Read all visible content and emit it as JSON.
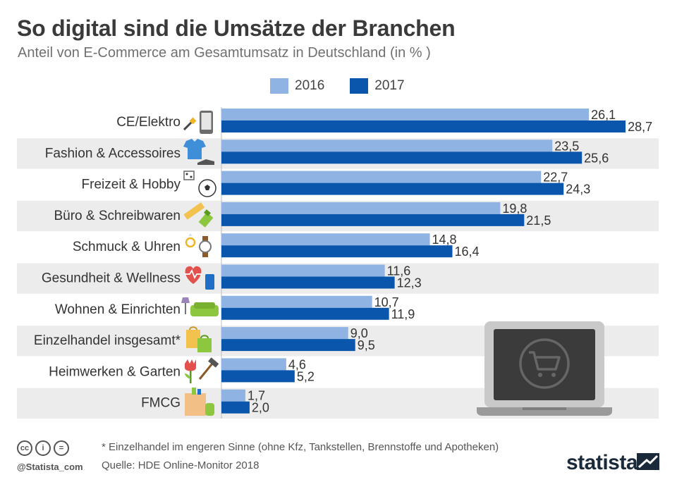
{
  "chart_data": {
    "type": "bar",
    "orientation": "horizontal",
    "title": "So digital sind die Umsätze der Branchen",
    "subtitle": "Anteil von E-Commerce am Gesamtumsatz in Deutschland (in % )",
    "categories": [
      "CE/Elektro",
      "Fashion & Accessoires",
      "Freizeit & Hobby",
      "Büro & Schreibwaren",
      "Schmuck & Uhren",
      "Gesundheit & Wellness",
      "Wohnen & Einrichten",
      "Einzelhandel insgesamt*",
      "Heimwerken & Garten",
      "FMCG"
    ],
    "series": [
      {
        "name": "2016",
        "color": "#8fb4e3",
        "values": [
          26.1,
          23.5,
          22.7,
          19.8,
          14.8,
          11.6,
          10.7,
          9.0,
          4.6,
          1.7
        ],
        "labels": [
          "26,1",
          "23,5",
          "22,7",
          "19,8",
          "14,8",
          "11,6",
          "10,7",
          "9,0",
          "4,6",
          "1,7"
        ]
      },
      {
        "name": "2017",
        "color": "#0a56ad",
        "values": [
          28.7,
          25.6,
          24.3,
          21.5,
          16.4,
          12.3,
          11.9,
          9.5,
          5.2,
          2.0
        ],
        "labels": [
          "28,7",
          "25,6",
          "24,3",
          "21,5",
          "16,4",
          "12,3",
          "11,9",
          "9,5",
          "5,2",
          "2,0"
        ]
      }
    ],
    "xlim": [
      0,
      30
    ],
    "legend": "top-center",
    "grid": false
  },
  "icons": [
    "plug-phone-icon",
    "shirt-shoe-icon",
    "dice-ball-icon",
    "ruler-marker-icon",
    "ring-watch-icon",
    "heart-tube-icon",
    "lamp-sofa-icon",
    "shopping-bags-icon",
    "tulip-hammer-icon",
    "grocery-bag-icon",
    "laptop-cart-icon"
  ],
  "footnote": "* Einzelhandel im engeren Sinne (ohne Kfz, Tankstellen, Brennstoffe und Apotheken)",
  "source": "Quelle: HDE Online-Monitor 2018",
  "handle": "@Statista_com",
  "brand": "statista",
  "colors": {
    "band": "#ececec",
    "text": "#333333"
  }
}
